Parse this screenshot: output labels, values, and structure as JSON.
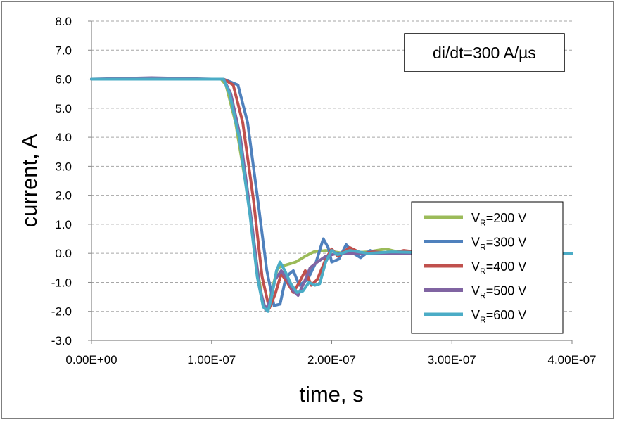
{
  "chart_data": {
    "type": "line",
    "title": "",
    "xlabel": "time, s",
    "ylabel": "current, A",
    "annotation": "di/dt=300 A/µs",
    "xlim": [
      0,
      4e-07
    ],
    "ylim": [
      -3,
      8
    ],
    "x_ticks": [
      0,
      1e-07,
      2e-07,
      3e-07,
      4e-07
    ],
    "x_tick_labels": [
      "0.00E+00",
      "1.00E-07",
      "2.00E-07",
      "3.00E-07",
      "4.00E-07"
    ],
    "y_ticks": [
      -3,
      -2,
      -1,
      0,
      1,
      2,
      3,
      4,
      5,
      6,
      7,
      8
    ],
    "y_tick_labels": [
      "-3.0",
      "-2.0",
      "-1.0",
      "0.0",
      "1.0",
      "2.0",
      "3.0",
      "4.0",
      "5.0",
      "6.0",
      "7.0",
      "8.0"
    ],
    "grid": "horizontal dashed",
    "legend_position": "bottom-right",
    "series": [
      {
        "name_main": "V",
        "name_sub": "R",
        "name_rest": "=200 V",
        "color": "#9bbb59",
        "points": [
          [
            0,
            6.0
          ],
          [
            5e-08,
            6.0
          ],
          [
            1e-07,
            6.0
          ],
          [
            1.08e-07,
            6.0
          ],
          [
            1.12e-07,
            5.8
          ],
          [
            1.2e-07,
            4.5
          ],
          [
            1.3e-07,
            2.0
          ],
          [
            1.38e-07,
            -0.5
          ],
          [
            1.43e-07,
            -1.8
          ],
          [
            1.47e-07,
            -1.9
          ],
          [
            1.5e-07,
            -1.3
          ],
          [
            1.55e-07,
            -0.5
          ],
          [
            1.62e-07,
            -0.4
          ],
          [
            1.7e-07,
            -0.3
          ],
          [
            1.78e-07,
            -0.1
          ],
          [
            1.85e-07,
            0.05
          ],
          [
            1.95e-07,
            0.1
          ],
          [
            2.1e-07,
            0.0
          ],
          [
            2.3e-07,
            0.05
          ],
          [
            2.45e-07,
            0.15
          ],
          [
            2.6e-07,
            0.0
          ],
          [
            3e-07,
            0.0
          ],
          [
            3.5e-07,
            0.0
          ],
          [
            4e-07,
            0.0
          ]
        ]
      },
      {
        "name_main": "V",
        "name_sub": "R",
        "name_rest": "=300 V",
        "color": "#4f81bd",
        "points": [
          [
            0,
            6.0
          ],
          [
            5e-08,
            6.0
          ],
          [
            1e-07,
            6.0
          ],
          [
            1.1e-07,
            6.0
          ],
          [
            1.22e-07,
            5.8
          ],
          [
            1.3e-07,
            4.5
          ],
          [
            1.38e-07,
            2.0
          ],
          [
            1.46e-07,
            -0.6
          ],
          [
            1.52e-07,
            -1.8
          ],
          [
            1.57e-07,
            -1.75
          ],
          [
            1.62e-07,
            -0.8
          ],
          [
            1.68e-07,
            -0.6
          ],
          [
            1.73e-07,
            -1.1
          ],
          [
            1.8e-07,
            -0.9
          ],
          [
            1.87e-07,
            -0.3
          ],
          [
            1.93e-07,
            0.5
          ],
          [
            1.97e-07,
            0.2
          ],
          [
            2e-07,
            -0.3
          ],
          [
            2.06e-07,
            -0.2
          ],
          [
            2.12e-07,
            0.3
          ],
          [
            2.18e-07,
            0.0
          ],
          [
            2.24e-07,
            -0.15
          ],
          [
            2.32e-07,
            0.1
          ],
          [
            2.4e-07,
            0.0
          ],
          [
            2.7e-07,
            0.0
          ],
          [
            3.2e-07,
            0.0
          ],
          [
            4e-07,
            0.0
          ]
        ]
      },
      {
        "name_main": "V",
        "name_sub": "R",
        "name_rest": "=400 V",
        "color": "#c0504d",
        "points": [
          [
            0,
            6.0
          ],
          [
            5e-08,
            6.0
          ],
          [
            1e-07,
            6.0
          ],
          [
            1.1e-07,
            6.0
          ],
          [
            1.18e-07,
            5.8
          ],
          [
            1.26e-07,
            4.5
          ],
          [
            1.35e-07,
            1.8
          ],
          [
            1.42e-07,
            -0.8
          ],
          [
            1.48e-07,
            -1.9
          ],
          [
            1.53e-07,
            -1.4
          ],
          [
            1.58e-07,
            -0.7
          ],
          [
            1.63e-07,
            -1.0
          ],
          [
            1.68e-07,
            -1.35
          ],
          [
            1.73e-07,
            -1.0
          ],
          [
            1.78e-07,
            -0.6
          ],
          [
            1.83e-07,
            -1.1
          ],
          [
            1.88e-07,
            -0.9
          ],
          [
            1.95e-07,
            -0.2
          ],
          [
            2e-07,
            0.15
          ],
          [
            2.05e-07,
            -0.1
          ],
          [
            2.15e-07,
            0.2
          ],
          [
            2.25e-07,
            0.0
          ],
          [
            2.35e-07,
            0.05
          ],
          [
            2.5e-07,
            0.0
          ],
          [
            2.6e-07,
            0.1
          ],
          [
            2.8e-07,
            0.0
          ],
          [
            3.5e-07,
            0.0
          ],
          [
            4e-07,
            0.0
          ]
        ]
      },
      {
        "name_main": "V",
        "name_sub": "R",
        "name_rest": "=500 V",
        "color": "#8064a2",
        "points": [
          [
            0,
            6.0
          ],
          [
            5e-08,
            6.05
          ],
          [
            1e-07,
            6.0
          ],
          [
            1.1e-07,
            6.0
          ],
          [
            1.16e-07,
            5.5
          ],
          [
            1.24e-07,
            4.0
          ],
          [
            1.33e-07,
            1.2
          ],
          [
            1.4e-07,
            -1.2
          ],
          [
            1.45e-07,
            -1.95
          ],
          [
            1.49e-07,
            -1.6
          ],
          [
            1.53e-07,
            -0.9
          ],
          [
            1.58e-07,
            -0.6
          ],
          [
            1.63e-07,
            -0.9
          ],
          [
            1.68e-07,
            -1.3
          ],
          [
            1.72e-07,
            -1.45
          ],
          [
            1.77e-07,
            -1.0
          ],
          [
            1.82e-07,
            -0.5
          ],
          [
            1.88e-07,
            -0.3
          ],
          [
            1.95e-07,
            -0.1
          ],
          [
            2.05e-07,
            0.0
          ],
          [
            2.2e-07,
            0.0
          ],
          [
            2.6e-07,
            0.0
          ],
          [
            3.2e-07,
            0.0
          ],
          [
            4e-07,
            0.0
          ]
        ]
      },
      {
        "name_main": "V",
        "name_sub": "R",
        "name_rest": "=600 V",
        "color": "#4bacc6",
        "points": [
          [
            0,
            6.0
          ],
          [
            5e-08,
            6.0
          ],
          [
            1e-07,
            6.0
          ],
          [
            1.1e-07,
            6.0
          ],
          [
            1.15e-07,
            5.5
          ],
          [
            1.23e-07,
            4.0
          ],
          [
            1.32e-07,
            1.3
          ],
          [
            1.38e-07,
            -0.8
          ],
          [
            1.43e-07,
            -1.85
          ],
          [
            1.47e-07,
            -2.0
          ],
          [
            1.5e-07,
            -1.5
          ],
          [
            1.54e-07,
            -0.6
          ],
          [
            1.57e-07,
            -0.3
          ],
          [
            1.61e-07,
            -0.6
          ],
          [
            1.66e-07,
            -1.05
          ],
          [
            1.71e-07,
            -1.35
          ],
          [
            1.76e-07,
            -1.3
          ],
          [
            1.81e-07,
            -1.0
          ],
          [
            1.86e-07,
            -1.1
          ],
          [
            1.9e-07,
            -1.05
          ],
          [
            1.95e-07,
            -0.3
          ],
          [
            2e-07,
            0.1
          ],
          [
            2.05e-07,
            -0.05
          ],
          [
            2.15e-07,
            0.1
          ],
          [
            2.3e-07,
            0.0
          ],
          [
            2.5e-07,
            0.05
          ],
          [
            3e-07,
            0.0
          ],
          [
            4e-07,
            0.0
          ]
        ]
      }
    ]
  }
}
